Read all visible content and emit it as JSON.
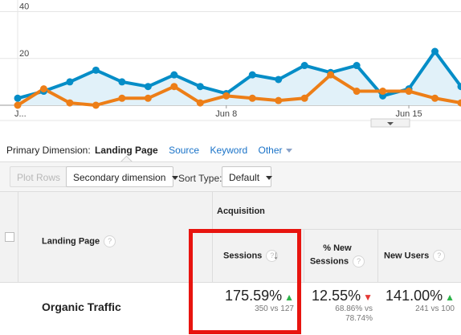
{
  "chart_data": {
    "type": "line",
    "y_ticks": [
      "40",
      "20"
    ],
    "x_ticks": [
      "J...",
      "Jun 8",
      "Jun 15"
    ],
    "ylim": [
      0,
      45
    ],
    "grid": true,
    "series": [
      {
        "color": "#058dc7",
        "fill": "#e1f1f9",
        "values": [
          3,
          6,
          10,
          15,
          10,
          8,
          13,
          8,
          5,
          13,
          11,
          17,
          14,
          17,
          4,
          7,
          23,
          8
        ]
      },
      {
        "color": "#ed7e17",
        "values": [
          0,
          7,
          1,
          0,
          3,
          3,
          8,
          1,
          4,
          3,
          2,
          3,
          13,
          6,
          6,
          6,
          3,
          1
        ]
      }
    ]
  },
  "dimension_bar": {
    "label": "Primary Dimension:",
    "active": "Landing Page",
    "links": [
      "Source",
      "Keyword",
      "Other"
    ]
  },
  "toolbar": {
    "plot_rows": "Plot Rows",
    "secondary_dimension": "Secondary dimension",
    "sort_type_label": "Sort Type:",
    "sort_value": "Default"
  },
  "table": {
    "group_header": "Acquisition",
    "col_landing_page": "Landing Page",
    "col_sessions": "Sessions",
    "col_new_sessions_line1": "% New",
    "col_new_sessions_line2": "Sessions",
    "col_new_users": "New Users",
    "help_glyph": "?",
    "row": {
      "label": "Organic Traffic",
      "sessions_value": "175.59%",
      "sessions_compare": "350 vs 127",
      "new_sessions_value": "12.55%",
      "new_sessions_compare_1": "68.86% vs",
      "new_sessions_compare_2": "78.74%",
      "new_users_value": "141.00%",
      "new_users_compare": "241 vs 100"
    }
  },
  "colors": {
    "highlight": "#e8140f",
    "up": "#2db34a",
    "down": "#e53935",
    "link": "#1a73c8"
  }
}
